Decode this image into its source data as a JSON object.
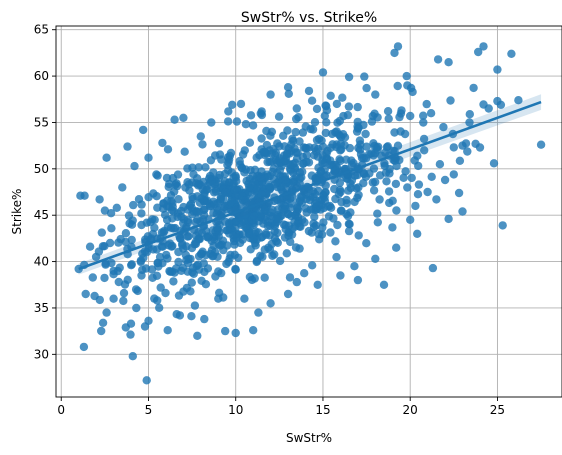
{
  "chart_data": {
    "type": "scatter",
    "title": "SwStr% vs. Strike%",
    "xlabel": "SwStr%",
    "ylabel": "Strike%",
    "xlim": [
      -0.3,
      28.7
    ],
    "ylim": [
      25.4,
      65.4
    ],
    "xticks": [
      0,
      5,
      10,
      15,
      20,
      25
    ],
    "yticks": [
      30,
      35,
      40,
      45,
      50,
      55,
      60,
      65
    ],
    "grid": true,
    "color": "#1f77b4",
    "regression": {
      "from": [
        1.0,
        39.2
      ],
      "to": [
        27.5,
        57.2
      ],
      "ci_half_width": 0.6
    },
    "notable_points": [
      {
        "x": 1.0,
        "y": 39.2
      },
      {
        "x": 1.1,
        "y": 47.1
      },
      {
        "x": 1.3,
        "y": 30.8
      },
      {
        "x": 1.4,
        "y": 36.5
      },
      {
        "x": 2.2,
        "y": 46.7
      },
      {
        "x": 2.4,
        "y": 33.4
      },
      {
        "x": 2.6,
        "y": 34.5
      },
      {
        "x": 2.6,
        "y": 51.2
      },
      {
        "x": 3.0,
        "y": 36.0
      },
      {
        "x": 3.6,
        "y": 36.6
      },
      {
        "x": 3.7,
        "y": 32.9
      },
      {
        "x": 3.8,
        "y": 52.4
      },
      {
        "x": 4.0,
        "y": 33.3
      },
      {
        "x": 4.1,
        "y": 29.8
      },
      {
        "x": 4.8,
        "y": 33.0
      },
      {
        "x": 4.9,
        "y": 27.2
      },
      {
        "x": 4.7,
        "y": 54.2
      },
      {
        "x": 6.1,
        "y": 32.6
      },
      {
        "x": 6.4,
        "y": 49.0
      },
      {
        "x": 6.5,
        "y": 55.3
      },
      {
        "x": 7.0,
        "y": 55.5
      },
      {
        "x": 7.8,
        "y": 32.0
      },
      {
        "x": 9.4,
        "y": 32.5
      },
      {
        "x": 9.8,
        "y": 56.9
      },
      {
        "x": 10.0,
        "y": 32.3
      },
      {
        "x": 10.3,
        "y": 57.0
      },
      {
        "x": 11.0,
        "y": 32.6
      },
      {
        "x": 12.0,
        "y": 58.0
      },
      {
        "x": 13.0,
        "y": 58.8
      },
      {
        "x": 14.2,
        "y": 58.4
      },
      {
        "x": 15.0,
        "y": 60.4
      },
      {
        "x": 16.5,
        "y": 59.9
      },
      {
        "x": 16.0,
        "y": 38.5
      },
      {
        "x": 17.0,
        "y": 38.0
      },
      {
        "x": 18.5,
        "y": 37.5
      },
      {
        "x": 19.1,
        "y": 62.5
      },
      {
        "x": 19.3,
        "y": 63.2
      },
      {
        "x": 19.8,
        "y": 60.0
      },
      {
        "x": 20.4,
        "y": 43.0
      },
      {
        "x": 21.3,
        "y": 39.3
      },
      {
        "x": 21.6,
        "y": 61.8
      },
      {
        "x": 22.2,
        "y": 61.5
      },
      {
        "x": 22.2,
        "y": 44.6
      },
      {
        "x": 23.0,
        "y": 45.4
      },
      {
        "x": 23.9,
        "y": 62.6
      },
      {
        "x": 24.2,
        "y": 63.2
      },
      {
        "x": 24.8,
        "y": 50.6
      },
      {
        "x": 25.0,
        "y": 60.7
      },
      {
        "x": 25.2,
        "y": 56.9
      },
      {
        "x": 25.3,
        "y": 43.9
      },
      {
        "x": 25.8,
        "y": 62.4
      },
      {
        "x": 26.2,
        "y": 57.4
      },
      {
        "x": 27.5,
        "y": 52.6
      },
      {
        "x": 24.0,
        "y": 52.3
      },
      {
        "x": 23.0,
        "y": 52.5
      },
      {
        "x": 22.5,
        "y": 49.4
      },
      {
        "x": 20.5,
        "y": 48.3
      },
      {
        "x": 21.0,
        "y": 47.5
      },
      {
        "x": 21.5,
        "y": 46.7
      },
      {
        "x": 22.8,
        "y": 47.4
      },
      {
        "x": 22.0,
        "y": 48.8
      },
      {
        "x": 21.7,
        "y": 50.5
      },
      {
        "x": 20.3,
        "y": 46.0
      },
      {
        "x": 20.0,
        "y": 55.7
      },
      {
        "x": 19.5,
        "y": 56.3
      },
      {
        "x": 21.2,
        "y": 56.0
      },
      {
        "x": 21.9,
        "y": 54.5
      },
      {
        "x": 23.4,
        "y": 55.0
      },
      {
        "x": 25.0,
        "y": 57.3
      },
      {
        "x": 24.5,
        "y": 56.5
      },
      {
        "x": 18.0,
        "y": 58.0
      },
      {
        "x": 17.5,
        "y": 58.7
      },
      {
        "x": 3.0,
        "y": 39.0
      },
      {
        "x": 2.8,
        "y": 42.0
      },
      {
        "x": 3.3,
        "y": 37.8
      },
      {
        "x": 4.3,
        "y": 35.0
      },
      {
        "x": 5.5,
        "y": 35.8
      },
      {
        "x": 6.8,
        "y": 34.2
      },
      {
        "x": 8.2,
        "y": 33.8
      },
      {
        "x": 9.0,
        "y": 36.0
      },
      {
        "x": 7.4,
        "y": 36.8
      },
      {
        "x": 5.7,
        "y": 37.2
      },
      {
        "x": 4.6,
        "y": 38.5
      },
      {
        "x": 2.0,
        "y": 40.5
      },
      {
        "x": 2.5,
        "y": 45.5
      },
      {
        "x": 3.5,
        "y": 48.0
      },
      {
        "x": 4.2,
        "y": 50.3
      },
      {
        "x": 5.0,
        "y": 51.2
      },
      {
        "x": 5.8,
        "y": 52.8
      },
      {
        "x": 8.0,
        "y": 53.5
      },
      {
        "x": 8.6,
        "y": 55.0
      },
      {
        "x": 11.5,
        "y": 55.8
      },
      {
        "x": 13.5,
        "y": 56.5
      },
      {
        "x": 15.8,
        "y": 57.0
      },
      {
        "x": 14.7,
        "y": 37.5
      },
      {
        "x": 13.0,
        "y": 36.5
      },
      {
        "x": 12.0,
        "y": 35.5
      },
      {
        "x": 11.3,
        "y": 34.5
      },
      {
        "x": 10.5,
        "y": 36.0
      },
      {
        "x": 16.8,
        "y": 39.5
      },
      {
        "x": 18.0,
        "y": 40.3
      },
      {
        "x": 19.2,
        "y": 41.5
      },
      {
        "x": 20.0,
        "y": 44.5
      },
      {
        "x": 20.8,
        "y": 52.0
      }
    ],
    "cluster": {
      "count": 1100,
      "x_mean": 11.5,
      "x_sd": 4.2,
      "y_intercept": 39.2,
      "y_slope": 0.67,
      "residual_sd": 3.6,
      "xlim": [
        1.0,
        25.0
      ],
      "ylim": [
        30.0,
        61.0
      ]
    }
  }
}
